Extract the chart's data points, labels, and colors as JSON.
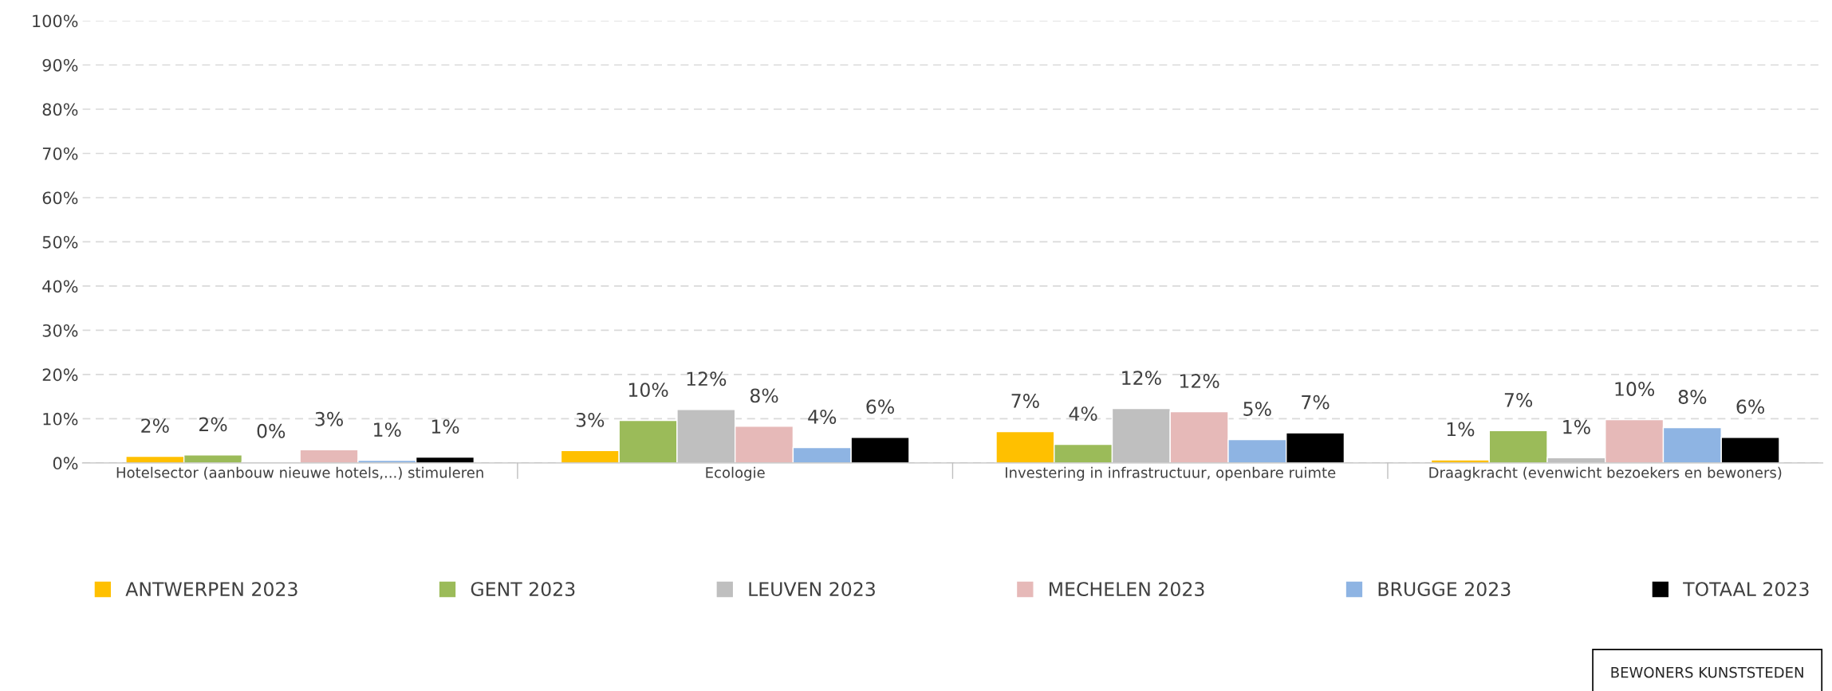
{
  "chart_data": {
    "type": "bar",
    "categories": [
      "Hotelsector (aanbouw nieuwe hotels,...) stimuleren",
      "Ecologie",
      "Investering in infrastructuur, openbare ruimte",
      "Draagkracht (evenwicht bezoekers en bewoners)"
    ],
    "series": [
      {
        "name": "ANTWERPEN 2023",
        "color": "#ffc000",
        "values": [
          1.5,
          2.8,
          7.1,
          0.7
        ],
        "value_labels": [
          "2%",
          "3%",
          "7%",
          "1%"
        ]
      },
      {
        "name": "GENT 2023",
        "color": "#9bbb59",
        "values": [
          1.8,
          9.6,
          4.2,
          7.3
        ],
        "value_labels": [
          "2%",
          "10%",
          "4%",
          "7%"
        ]
      },
      {
        "name": "LEUVEN 2023",
        "color": "#bfbfbf",
        "values": [
          0.3,
          12.1,
          12.3,
          1.2
        ],
        "value_labels": [
          "0%",
          "12%",
          "12%",
          "1%"
        ]
      },
      {
        "name": "MECHELEN 2023",
        "color": "#e6b9b8",
        "values": [
          3.0,
          8.3,
          11.6,
          9.8
        ],
        "value_labels": [
          "3%",
          "8%",
          "12%",
          "10%"
        ]
      },
      {
        "name": "BRUGGE 2023",
        "color": "#8eb4e3",
        "values": [
          0.6,
          3.5,
          5.3,
          8.0
        ],
        "value_labels": [
          "1%",
          "4%",
          "5%",
          "8%"
        ]
      },
      {
        "name": "TOTAAL 2023",
        "color": "#000000",
        "values": [
          1.3,
          5.8,
          6.8,
          5.8
        ],
        "value_labels": [
          "1%",
          "6%",
          "7%",
          "6%"
        ]
      }
    ],
    "ylim": [
      0,
      100
    ],
    "yticks": [
      {
        "value": 0,
        "label": "0%"
      },
      {
        "value": 10,
        "label": "10%"
      },
      {
        "value": 20,
        "label": "20%"
      },
      {
        "value": 30,
        "label": "30%"
      },
      {
        "value": 40,
        "label": "40%"
      },
      {
        "value": 50,
        "label": "50%"
      },
      {
        "value": 60,
        "label": "60%"
      },
      {
        "value": 70,
        "label": "70%"
      },
      {
        "value": 80,
        "label": "80%"
      },
      {
        "value": 90,
        "label": "90%"
      },
      {
        "value": 100,
        "label": "100%"
      }
    ],
    "grid": "y",
    "legend": "bottom",
    "annotations": [
      "BEWONERS KUNSTSTEDEN"
    ]
  }
}
